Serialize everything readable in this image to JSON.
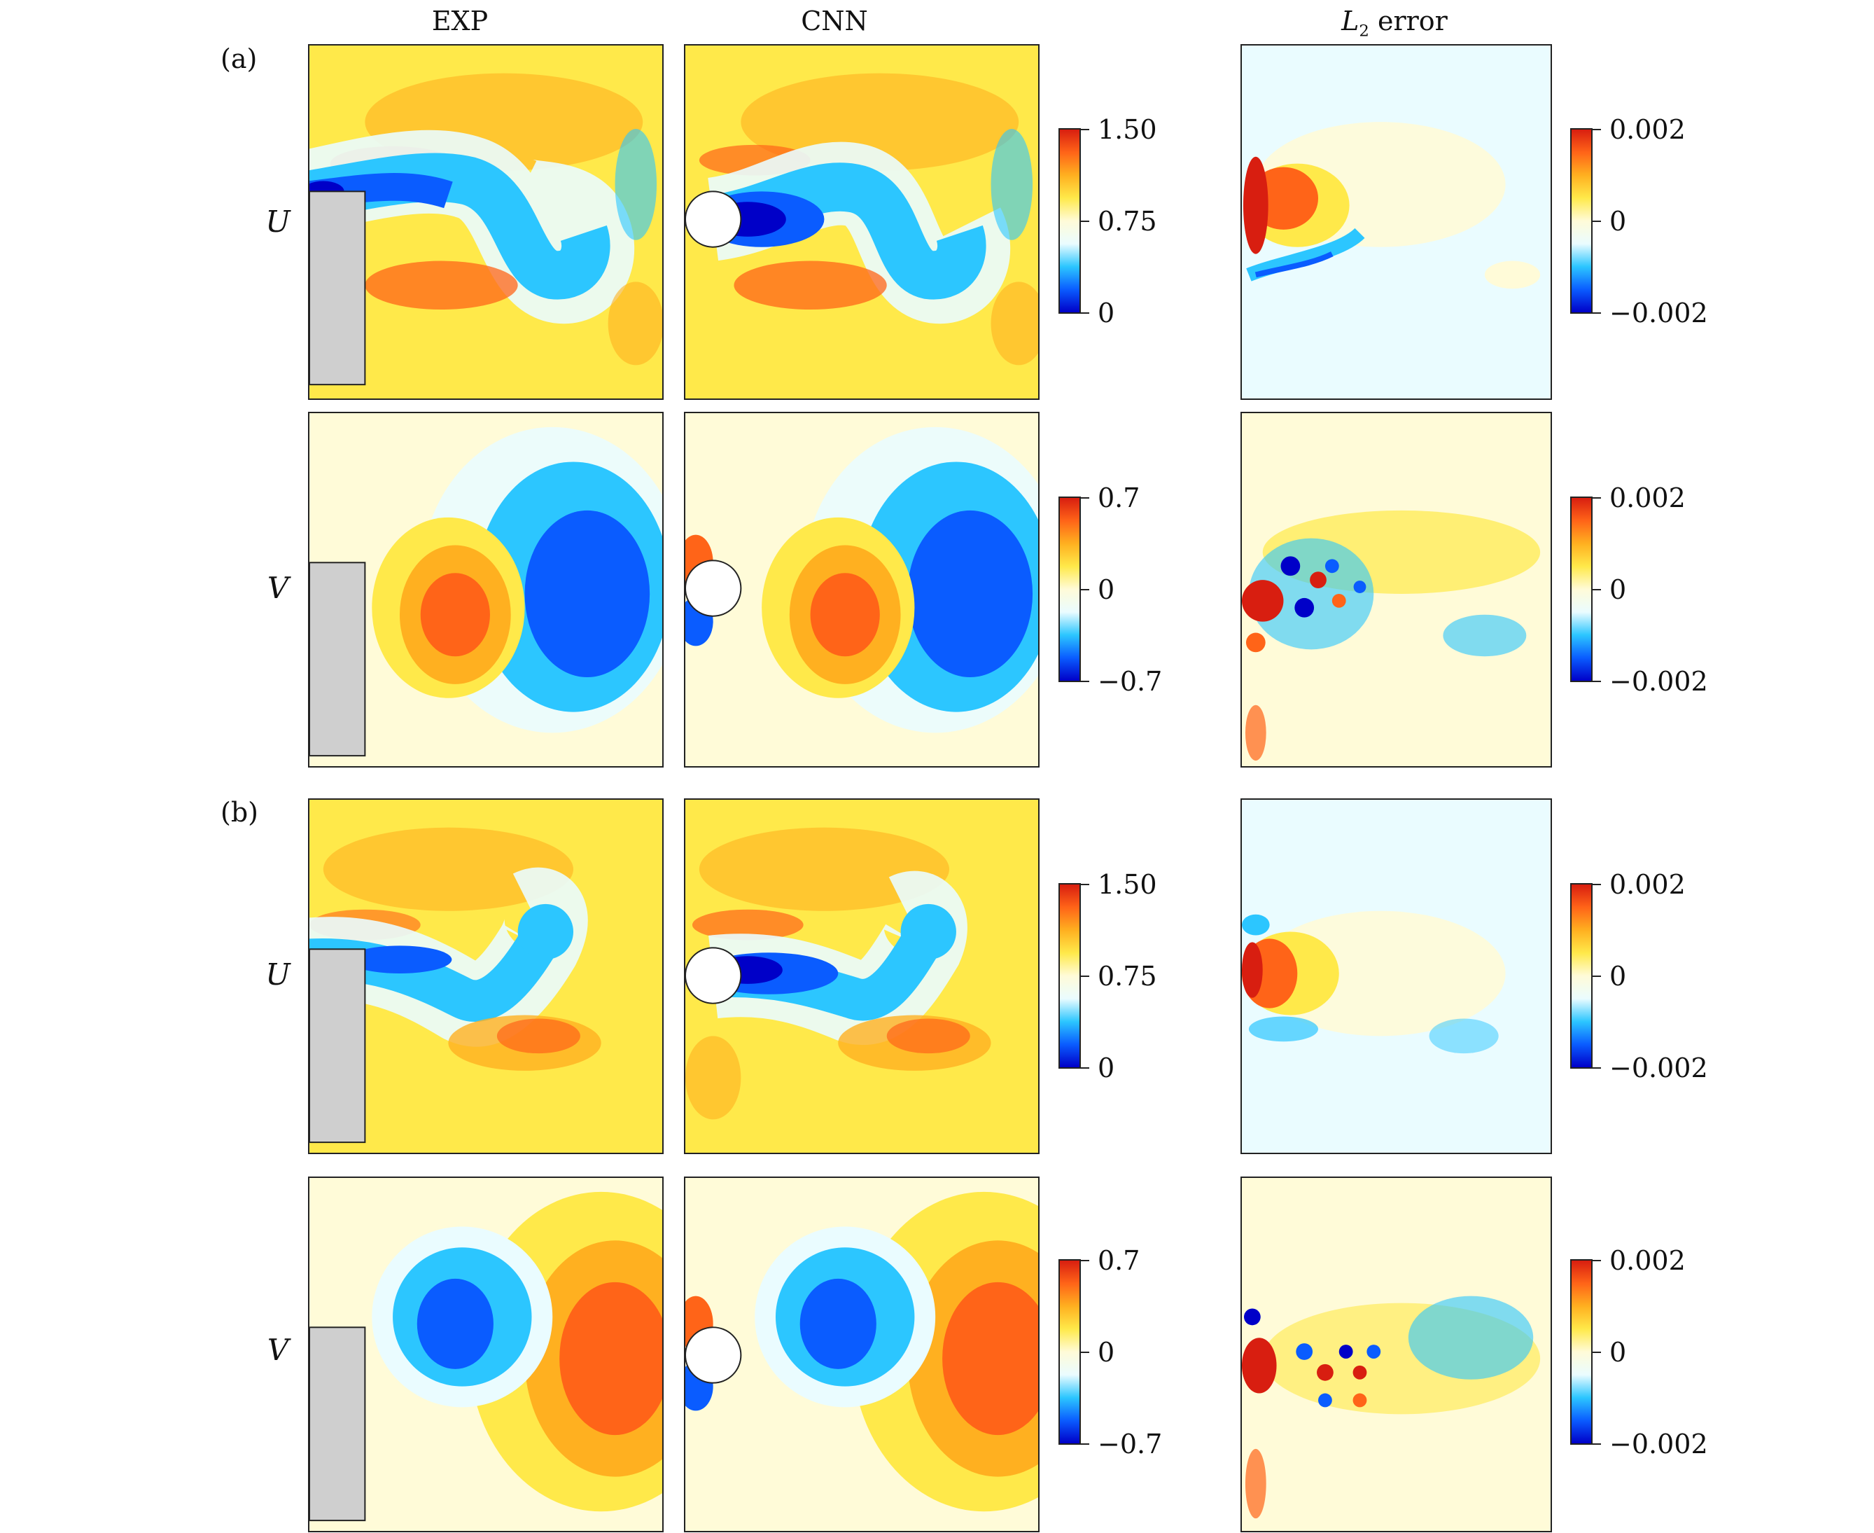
{
  "columns": {
    "exp": "EXP",
    "cnn": "CNN",
    "err_main": "L",
    "err_sub": "2",
    "err_suffix": " error"
  },
  "groups": [
    {
      "label": "(a)",
      "rows": [
        {
          "var": "U",
          "colorbar": [
            "1.50",
            "0.75",
            "0"
          ],
          "error_colorbar": [
            "0.002",
            "0",
            "−0.002"
          ]
        },
        {
          "var": "V",
          "colorbar": [
            "0.7",
            "0",
            "−0.7"
          ],
          "error_colorbar": [
            "0.002",
            "0",
            "−0.002"
          ]
        }
      ]
    },
    {
      "label": "(b)",
      "rows": [
        {
          "var": "U",
          "colorbar": [
            "1.50",
            "0.75",
            "0"
          ],
          "error_colorbar": [
            "0.002",
            "0",
            "−0.002"
          ]
        },
        {
          "var": "V",
          "colorbar": [
            "0.7",
            "0",
            "−0.7"
          ],
          "error_colorbar": [
            "0.002",
            "0",
            "−0.002"
          ]
        }
      ]
    }
  ],
  "colors": {
    "colormap": [
      "#0000c8",
      "#0a5cff",
      "#2cc6ff",
      "#eafcff",
      "#fffbd8",
      "#ffe94a",
      "#ffb020",
      "#ff6418",
      "#d81e10"
    ],
    "obstacle_gray": "#cfcfcf"
  }
}
